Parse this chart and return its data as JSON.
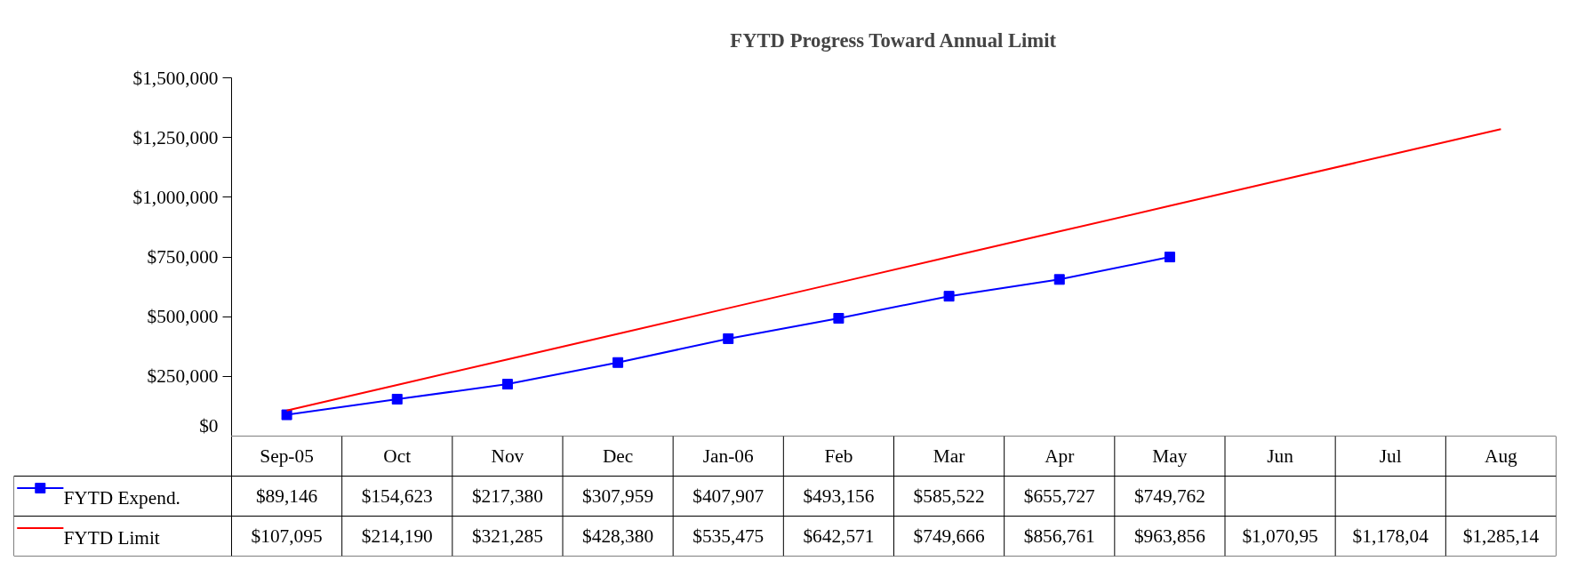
{
  "chart_data": {
    "type": "line",
    "title": "FYTD Progress Toward Annual Limit",
    "categories": [
      "Sep-05",
      "Oct",
      "Nov",
      "Dec",
      "Jan-06",
      "Feb",
      "Mar",
      "Apr",
      "May",
      "Jun",
      "Jul",
      "Aug"
    ],
    "series": [
      {
        "name": "FYTD Expend.",
        "color": "#0000ff",
        "marker": "square",
        "values": [
          89146,
          154623,
          217380,
          307959,
          407907,
          493156,
          585522,
          655727,
          749762,
          null,
          null,
          null
        ],
        "value_labels": [
          "$89,146",
          "$154,623",
          "$217,380",
          "$307,959",
          "$407,907",
          "$493,156",
          "$585,522",
          "$655,727",
          "$749,762",
          null,
          null,
          null
        ]
      },
      {
        "name": "FYTD Limit",
        "color": "#ff0000",
        "marker": "none",
        "values": [
          107095,
          214190,
          321285,
          428380,
          535475,
          642571,
          749666,
          856761,
          963856,
          1070950,
          1178040,
          1285140
        ],
        "value_labels": [
          "$107,095",
          "$214,190",
          "$321,285",
          "$428,380",
          "$535,475",
          "$642,571",
          "$749,666",
          "$856,761",
          "$963,856",
          "$1,070,95",
          "$1,178,04",
          "$1,285,14"
        ]
      }
    ],
    "ylim": [
      0,
      1500000
    ],
    "yticks": [
      {
        "value": 0,
        "label": "$0"
      },
      {
        "value": 250000,
        "label": "$250,000"
      },
      {
        "value": 500000,
        "label": "$500,000"
      },
      {
        "value": 750000,
        "label": "$750,000"
      },
      {
        "value": 1000000,
        "label": "$1,000,000"
      },
      {
        "value": 1250000,
        "label": "$1,250,000"
      },
      {
        "value": 1500000,
        "label": "$1,500,000"
      }
    ],
    "grid": false,
    "legend": "bottom left",
    "line_style": "solid"
  }
}
